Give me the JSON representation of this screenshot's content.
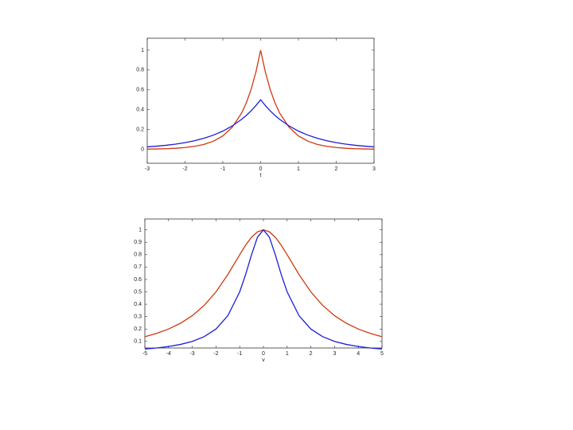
{
  "chart_data": [
    {
      "type": "line",
      "xlabel": "t",
      "x": [
        -3,
        -2.75,
        -2.5,
        -2.25,
        -2,
        -1.75,
        -1.5,
        -1.25,
        -1,
        -0.75,
        -0.5,
        -0.375,
        -0.25,
        -0.125,
        0,
        0.125,
        0.25,
        0.375,
        0.5,
        0.75,
        1,
        1.25,
        1.5,
        1.75,
        2,
        2.25,
        2.5,
        2.75,
        3
      ],
      "series": [
        {
          "color": "#d0380f",
          "values": [
            0.0025,
            0.0041,
            0.0067,
            0.0111,
            0.0183,
            0.0302,
            0.0498,
            0.0821,
            0.1353,
            0.2231,
            0.3679,
            0.4724,
            0.6065,
            0.7788,
            1,
            0.7788,
            0.6065,
            0.4724,
            0.3679,
            0.2231,
            0.1353,
            0.0821,
            0.0498,
            0.0302,
            0.0183,
            0.0111,
            0.0067,
            0.0041,
            0.0025
          ]
        },
        {
          "color": "#1c1fd6",
          "values": [
            0.0249,
            0.032,
            0.041,
            0.0527,
            0.0677,
            0.0869,
            0.1116,
            0.1433,
            0.1839,
            0.2362,
            0.3033,
            0.3436,
            0.3894,
            0.4412,
            0.5,
            0.4412,
            0.3894,
            0.3436,
            0.3033,
            0.2362,
            0.1839,
            0.1433,
            0.1116,
            0.0869,
            0.0677,
            0.0527,
            0.041,
            0.032,
            0.0249
          ]
        }
      ],
      "xlim": [
        -3,
        3
      ],
      "xticks": [
        -3,
        -2,
        -1,
        0,
        1,
        2,
        3
      ],
      "ylim": [
        -0.14,
        1.12
      ],
      "yticks": [
        0,
        0.2,
        0.4,
        0.6,
        0.8,
        1
      ]
    },
    {
      "type": "line",
      "xlabel": "v",
      "x": [
        -5,
        -4.5,
        -4,
        -3.5,
        -3,
        -2.5,
        -2,
        -1.5,
        -1,
        -0.75,
        -0.5,
        -0.25,
        0,
        0.25,
        0.5,
        0.75,
        1,
        1.5,
        2,
        2.5,
        3,
        3.5,
        4,
        4.5,
        5
      ],
      "series": [
        {
          "color": "#d0380f",
          "values": [
            0.1379,
            0.1649,
            0.2,
            0.2462,
            0.3077,
            0.3902,
            0.5,
            0.64,
            0.8,
            0.8767,
            0.9412,
            0.9846,
            1,
            0.9846,
            0.9412,
            0.8767,
            0.8,
            0.64,
            0.5,
            0.3902,
            0.3077,
            0.2462,
            0.2,
            0.1649,
            0.1379
          ]
        },
        {
          "color": "#1c1fd6",
          "values": [
            0.0385,
            0.0471,
            0.0588,
            0.0755,
            0.1,
            0.1379,
            0.2,
            0.3077,
            0.5,
            0.64,
            0.8,
            0.9412,
            1,
            0.9412,
            0.8,
            0.64,
            0.5,
            0.3077,
            0.2,
            0.1379,
            0.1,
            0.0755,
            0.0588,
            0.0471,
            0.0385
          ]
        }
      ],
      "xlim": [
        -5,
        5
      ],
      "xticks": [
        -5,
        -4,
        -3,
        -2,
        -1,
        0,
        1,
        2,
        3,
        4,
        5
      ],
      "ylim": [
        0.047,
        1.088
      ],
      "yticks": [
        0.1,
        0.2,
        0.3,
        0.4,
        0.5,
        0.6,
        0.7,
        0.8,
        0.9,
        1
      ]
    }
  ]
}
